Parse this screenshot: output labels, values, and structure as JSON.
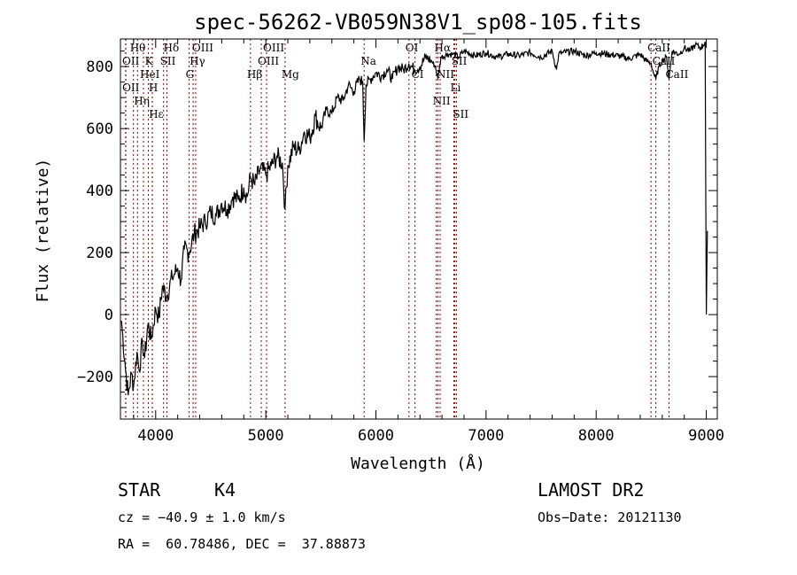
{
  "chart_data": {
    "type": "line",
    "title": "spec-56262-VB059N38V1_sp08-105.fits",
    "xlabel": "Wavelength (Å)",
    "ylabel": "Flux (relative)",
    "xlim": [
      3680,
      9100
    ],
    "ylim": [
      -337,
      889
    ],
    "xticks": [
      4000,
      5000,
      6000,
      7000,
      8000,
      9000
    ],
    "yticks": [
      -200,
      0,
      200,
      400,
      600,
      800
    ],
    "series": [
      {
        "name": "spectrum",
        "x": [
          3690,
          3720,
          3750,
          3780,
          3800,
          3830,
          3850,
          3880,
          3900,
          3930,
          3960,
          4000,
          4030,
          4060,
          4100,
          4150,
          4200,
          4230,
          4260,
          4300,
          4350,
          4400,
          4450,
          4500,
          4550,
          4600,
          4650,
          4700,
          4750,
          4800,
          4830,
          4860,
          4900,
          4950,
          5000,
          5050,
          5100,
          5150,
          5175,
          5200,
          5250,
          5300,
          5350,
          5400,
          5450,
          5500,
          5550,
          5600,
          5650,
          5700,
          5750,
          5800,
          5850,
          5880,
          5893,
          5910,
          5950,
          6000,
          6050,
          6100,
          6150,
          6200,
          6250,
          6300,
          6350,
          6400,
          6450,
          6500,
          6540,
          6563,
          6590,
          6650,
          6700,
          6750,
          6800,
          6900,
          7000,
          7100,
          7200,
          7300,
          7400,
          7500,
          7600,
          7640,
          7660,
          7700,
          7800,
          7900,
          8000,
          8100,
          8200,
          8300,
          8400,
          8450,
          8500,
          8520,
          8542,
          8570,
          8600,
          8640,
          8662,
          8690,
          8750,
          8800,
          8850,
          8900,
          8950,
          8990,
          9000,
          9010
        ],
        "y": [
          -20,
          -150,
          -260,
          -190,
          -230,
          -120,
          -180,
          -90,
          -140,
          -30,
          -80,
          20,
          -10,
          90,
          60,
          120,
          150,
          110,
          210,
          200,
          260,
          280,
          300,
          330,
          320,
          360,
          340,
          380,
          370,
          410,
          380,
          440,
          420,
          470,
          450,
          480,
          510,
          490,
          340,
          480,
          540,
          530,
          590,
          570,
          640,
          600,
          660,
          650,
          700,
          690,
          740,
          720,
          760,
          750,
          560,
          740,
          760,
          780,
          770,
          790,
          760,
          800,
          790,
          810,
          790,
          800,
          830,
          820,
          800,
          760,
          830,
          840,
          840,
          830,
          850,
          835,
          845,
          830,
          840,
          835,
          845,
          830,
          850,
          790,
          840,
          845,
          850,
          835,
          845,
          840,
          835,
          825,
          840,
          820,
          810,
          780,
          760,
          800,
          820,
          830,
          760,
          850,
          840,
          860,
          850,
          870,
          860,
          880,
          0,
          270
        ]
      }
    ],
    "lines": [
      {
        "label": "Hθ",
        "wl": 3798,
        "row": 1
      },
      {
        "label": "K",
        "wl": 3934,
        "row": 1
      },
      {
        "label": "Hδ",
        "wl": 4102,
        "row": 1
      },
      {
        "label": "OIII",
        "wl": 4363,
        "row": 1
      },
      {
        "label": "OIII",
        "wl": 5007,
        "row": 1
      },
      {
        "label": "OI",
        "wl": 6300,
        "row": 1
      },
      {
        "label": "Hα",
        "wl": 6563,
        "row": 1
      },
      {
        "label": "SII",
        "wl": 6717,
        "row": 1
      },
      {
        "label": "CaII",
        "wl": 8498,
        "row": 1
      },
      {
        "label": "OII",
        "wl": 3727,
        "row": 2
      },
      {
        "label": "HeI",
        "wl": 3889,
        "row": 2
      },
      {
        "label": "SII",
        "wl": 4072,
        "row": 2
      },
      {
        "label": "Hγ",
        "wl": 4340,
        "row": 2
      },
      {
        "label": "OIII",
        "wl": 4959,
        "row": 2
      },
      {
        "label": "Na",
        "wl": 5893,
        "row": 2
      },
      {
        "label": "NII",
        "wl": 6583,
        "row": 2
      },
      {
        "label": "Li",
        "wl": 6708,
        "row": 2
      },
      {
        "label": "CaII",
        "wl": 8542,
        "row": 2
      },
      {
        "label": "OII",
        "wl": 3729,
        "row": 3
      },
      {
        "label": "Hε",
        "wl": 3970,
        "row": 3
      },
      {
        "label": "Hη",
        "wl": 3835,
        "row": 3
      },
      {
        "label": "H",
        "wl": 3969,
        "row": 3
      },
      {
        "label": "G",
        "wl": 4304,
        "row": 3
      },
      {
        "label": "Hβ",
        "wl": 4861,
        "row": 3
      },
      {
        "label": "Mg",
        "wl": 5175,
        "row": 3
      },
      {
        "label": "CI",
        "wl": 6355,
        "row": 3
      },
      {
        "label": "NII",
        "wl": 6548,
        "row": 3
      },
      {
        "label": "SII",
        "wl": 6731,
        "row": 3
      },
      {
        "label": "CaII",
        "wl": 8662,
        "row": 3
      }
    ],
    "grid": false,
    "line_color": "#000000",
    "marker_color": "#8b0000"
  },
  "footer": {
    "object_type": "STAR",
    "subclass": "K4",
    "survey": "LAMOST DR2",
    "cz": "cz = −40.9 ± 1.0 km/s",
    "obs_date": "Obs−Date: 20121130",
    "coords": "RA =  60.78486, DEC =  37.88873"
  }
}
